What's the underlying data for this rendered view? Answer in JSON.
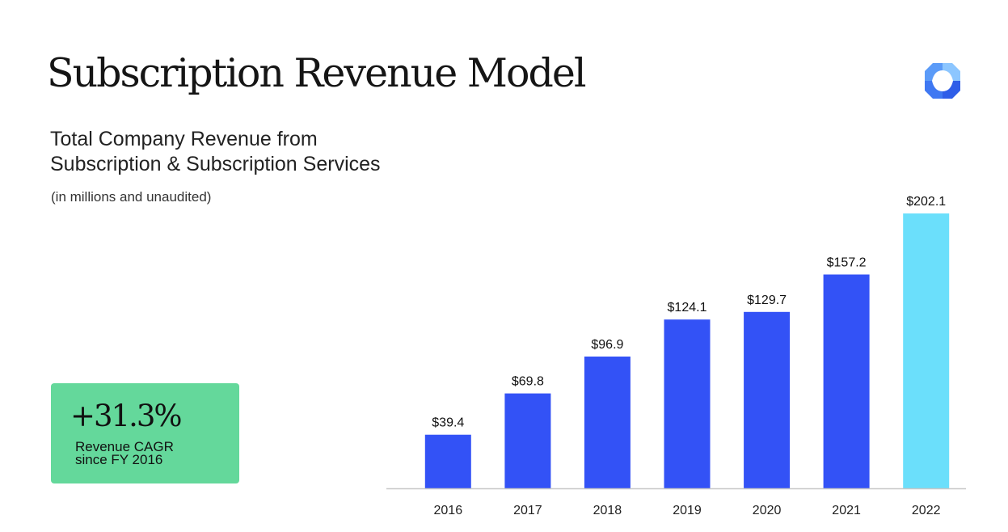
{
  "header": {
    "title": "Subscription Revenue Model",
    "logo_icon": "four-point-star-logo-icon"
  },
  "subtitle": {
    "line1": "Total Company Revenue from",
    "line2": "Subscription & Subscription Services",
    "note": "(in millions and unaudited)"
  },
  "callout": {
    "value": "+31.3%",
    "label_line1": "Revenue CAGR",
    "label_line2": "since FY 2016",
    "color": "#64d89b"
  },
  "chart_data": {
    "type": "bar",
    "title": "",
    "xlabel": "",
    "ylabel": "",
    "categories": [
      "2016",
      "2017",
      "2018",
      "2019",
      "2020",
      "2021",
      "2022"
    ],
    "values": [
      39.4,
      69.8,
      96.9,
      124.1,
      129.7,
      157.2,
      202.1
    ],
    "data_labels": [
      "$39.4",
      "$69.8",
      "$96.9",
      "$124.1",
      "$129.7",
      "$157.2",
      "$202.1"
    ],
    "ylim": [
      0,
      202.1
    ],
    "grid": false,
    "legend": "none",
    "colors": {
      "bar": "#3352f6",
      "highlight_bar": "#6bdffb",
      "baseline": "#c8c8c8"
    },
    "highlight_category": "2022"
  }
}
